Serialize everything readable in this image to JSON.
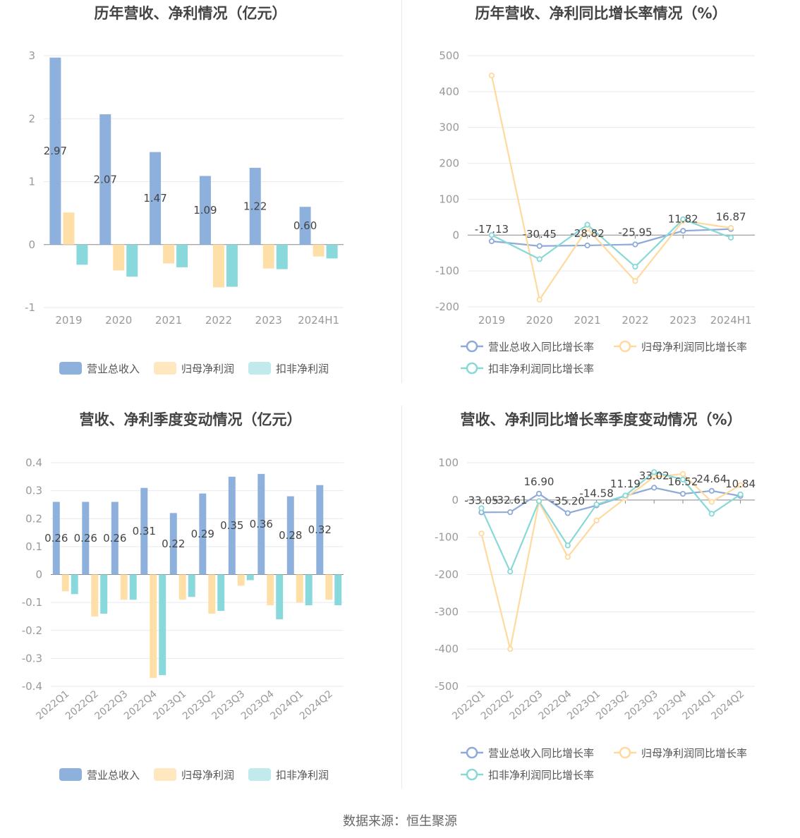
{
  "source_text": "数据来源：恒生聚源",
  "colors": {
    "revenue": "#8eb0dc",
    "net_profit": "#ffdfa8",
    "deducted_profit": "#88d8dc",
    "revenue_legend": "#8eb0dc",
    "net_profit_legend": "#ffe7c0",
    "deducted_profit_legend": "#c0eaec",
    "rev_line": "#8eaad8",
    "np_line": "#ffd99e",
    "dp_line": "#88d8d8",
    "grid": "#e6e9f0",
    "axis_text": "#999999",
    "title": "#444444",
    "label": "#444444"
  },
  "chart_data": [
    {
      "id": "annual-amount",
      "type": "bar",
      "title": "历年营收、净利情况（亿元）",
      "categories": [
        "2019",
        "2020",
        "2021",
        "2022",
        "2023",
        "2024H1"
      ],
      "ylim": [
        -1,
        3
      ],
      "yticks": [
        "3",
        "2",
        "1",
        "0",
        "-1"
      ],
      "series": [
        {
          "name": "营业总收入",
          "key": "revenue",
          "values": [
            2.97,
            2.07,
            1.47,
            1.09,
            1.22,
            0.6
          ],
          "labels": [
            "2.97",
            "2.07",
            "1.47",
            "1.09",
            "1.22",
            "0.60"
          ]
        },
        {
          "name": "归母净利润",
          "key": "net_profit",
          "values": [
            0.51,
            -0.41,
            -0.3,
            -0.68,
            -0.38,
            -0.19
          ]
        },
        {
          "name": "扣非净利润",
          "key": "deducted_profit",
          "values": [
            -0.32,
            -0.51,
            -0.36,
            -0.67,
            -0.39,
            -0.22
          ]
        }
      ],
      "grid": true,
      "legend_position": "bottom"
    },
    {
      "id": "annual-growth",
      "type": "line",
      "title": "历年营收、净利同比增长率情况（%）",
      "categories": [
        "2019",
        "2020",
        "2021",
        "2022",
        "2023",
        "2024H1"
      ],
      "ylim": [
        -200,
        500
      ],
      "yticks": [
        "500",
        "400",
        "300",
        "200",
        "100",
        "0",
        "-100",
        "-200"
      ],
      "series": [
        {
          "name": "营业总收入同比增长率",
          "key": "rev_line",
          "values": [
            -17.13,
            -30.45,
            -28.82,
            -25.95,
            11.82,
            16.87
          ],
          "labels": [
            "-17.13",
            "-30.45",
            "-28.82",
            "-25.95",
            "11.82",
            "16.87"
          ]
        },
        {
          "name": "归母净利润同比增长率",
          "key": "np_line",
          "values": [
            445,
            -180,
            18,
            -128,
            40,
            20
          ]
        },
        {
          "name": "扣非净利润同比增长率",
          "key": "dp_line",
          "values": [
            0,
            -67,
            29,
            -88,
            44,
            -7
          ]
        }
      ],
      "grid": true,
      "legend_position": "bottom"
    },
    {
      "id": "quarterly-amount",
      "type": "bar",
      "title": "营收、净利季度变动情况（亿元）",
      "categories": [
        "2022Q1",
        "2022Q2",
        "2022Q3",
        "2022Q4",
        "2023Q1",
        "2023Q2",
        "2023Q3",
        "2023Q4",
        "2024Q1",
        "2024Q2"
      ],
      "ylim": [
        -0.4,
        0.4
      ],
      "yticks": [
        "0.4",
        "0.3",
        "0.2",
        "0.1",
        "0",
        "-0.1",
        "-0.2",
        "-0.3",
        "-0.4"
      ],
      "series": [
        {
          "name": "营业总收入",
          "key": "revenue",
          "values": [
            0.26,
            0.26,
            0.26,
            0.31,
            0.22,
            0.29,
            0.35,
            0.36,
            0.28,
            0.32
          ],
          "labels": [
            "0.26",
            "0.26",
            "0.26",
            "0.31",
            "0.22",
            "0.29",
            "0.35",
            "0.36",
            "0.28",
            "0.32"
          ]
        },
        {
          "name": "归母净利润",
          "key": "net_profit",
          "values": [
            -0.06,
            -0.15,
            -0.09,
            -0.37,
            -0.09,
            -0.14,
            -0.04,
            -0.11,
            -0.1,
            -0.09
          ]
        },
        {
          "name": "扣非净利润",
          "key": "deducted_profit",
          "values": [
            -0.07,
            -0.14,
            -0.09,
            -0.36,
            -0.08,
            -0.13,
            -0.02,
            -0.16,
            -0.11,
            -0.11
          ]
        }
      ],
      "grid": true,
      "legend_position": "bottom"
    },
    {
      "id": "quarterly-growth",
      "type": "line",
      "title": "营收、净利同比增长率季度变动情况（%）",
      "categories": [
        "2022Q1",
        "2022Q2",
        "2022Q3",
        "2022Q4",
        "2023Q1",
        "2023Q2",
        "2023Q3",
        "2023Q4",
        "2024Q1",
        "2024Q2"
      ],
      "ylim": [
        -500,
        100
      ],
      "yticks": [
        "100",
        "0",
        "-100",
        "-200",
        "-300",
        "-400",
        "-500"
      ],
      "series": [
        {
          "name": "营业总收入同比增长率",
          "key": "rev_line",
          "values": [
            -33.05,
            -32.61,
            16.9,
            -35.2,
            -14.58,
            11.19,
            33.02,
            16.52,
            24.64,
            10.84
          ],
          "labels": [
            "-33.05",
            "-32.61",
            "16.90",
            "-35.20",
            "-14.58",
            "11.19",
            "33.02",
            "16.52",
            "24.64",
            "10.84"
          ]
        },
        {
          "name": "归母净利润同比增长率",
          "key": "np_line",
          "values": [
            -90,
            -400,
            -5,
            -153,
            -55,
            5,
            62,
            70,
            -5,
            40
          ]
        },
        {
          "name": "扣非净利润同比增长率",
          "key": "dp_line",
          "values": [
            -22,
            -192,
            -3,
            -122,
            -12,
            12,
            75,
            55,
            -37,
            15
          ]
        }
      ],
      "grid": true,
      "legend_position": "bottom"
    }
  ]
}
